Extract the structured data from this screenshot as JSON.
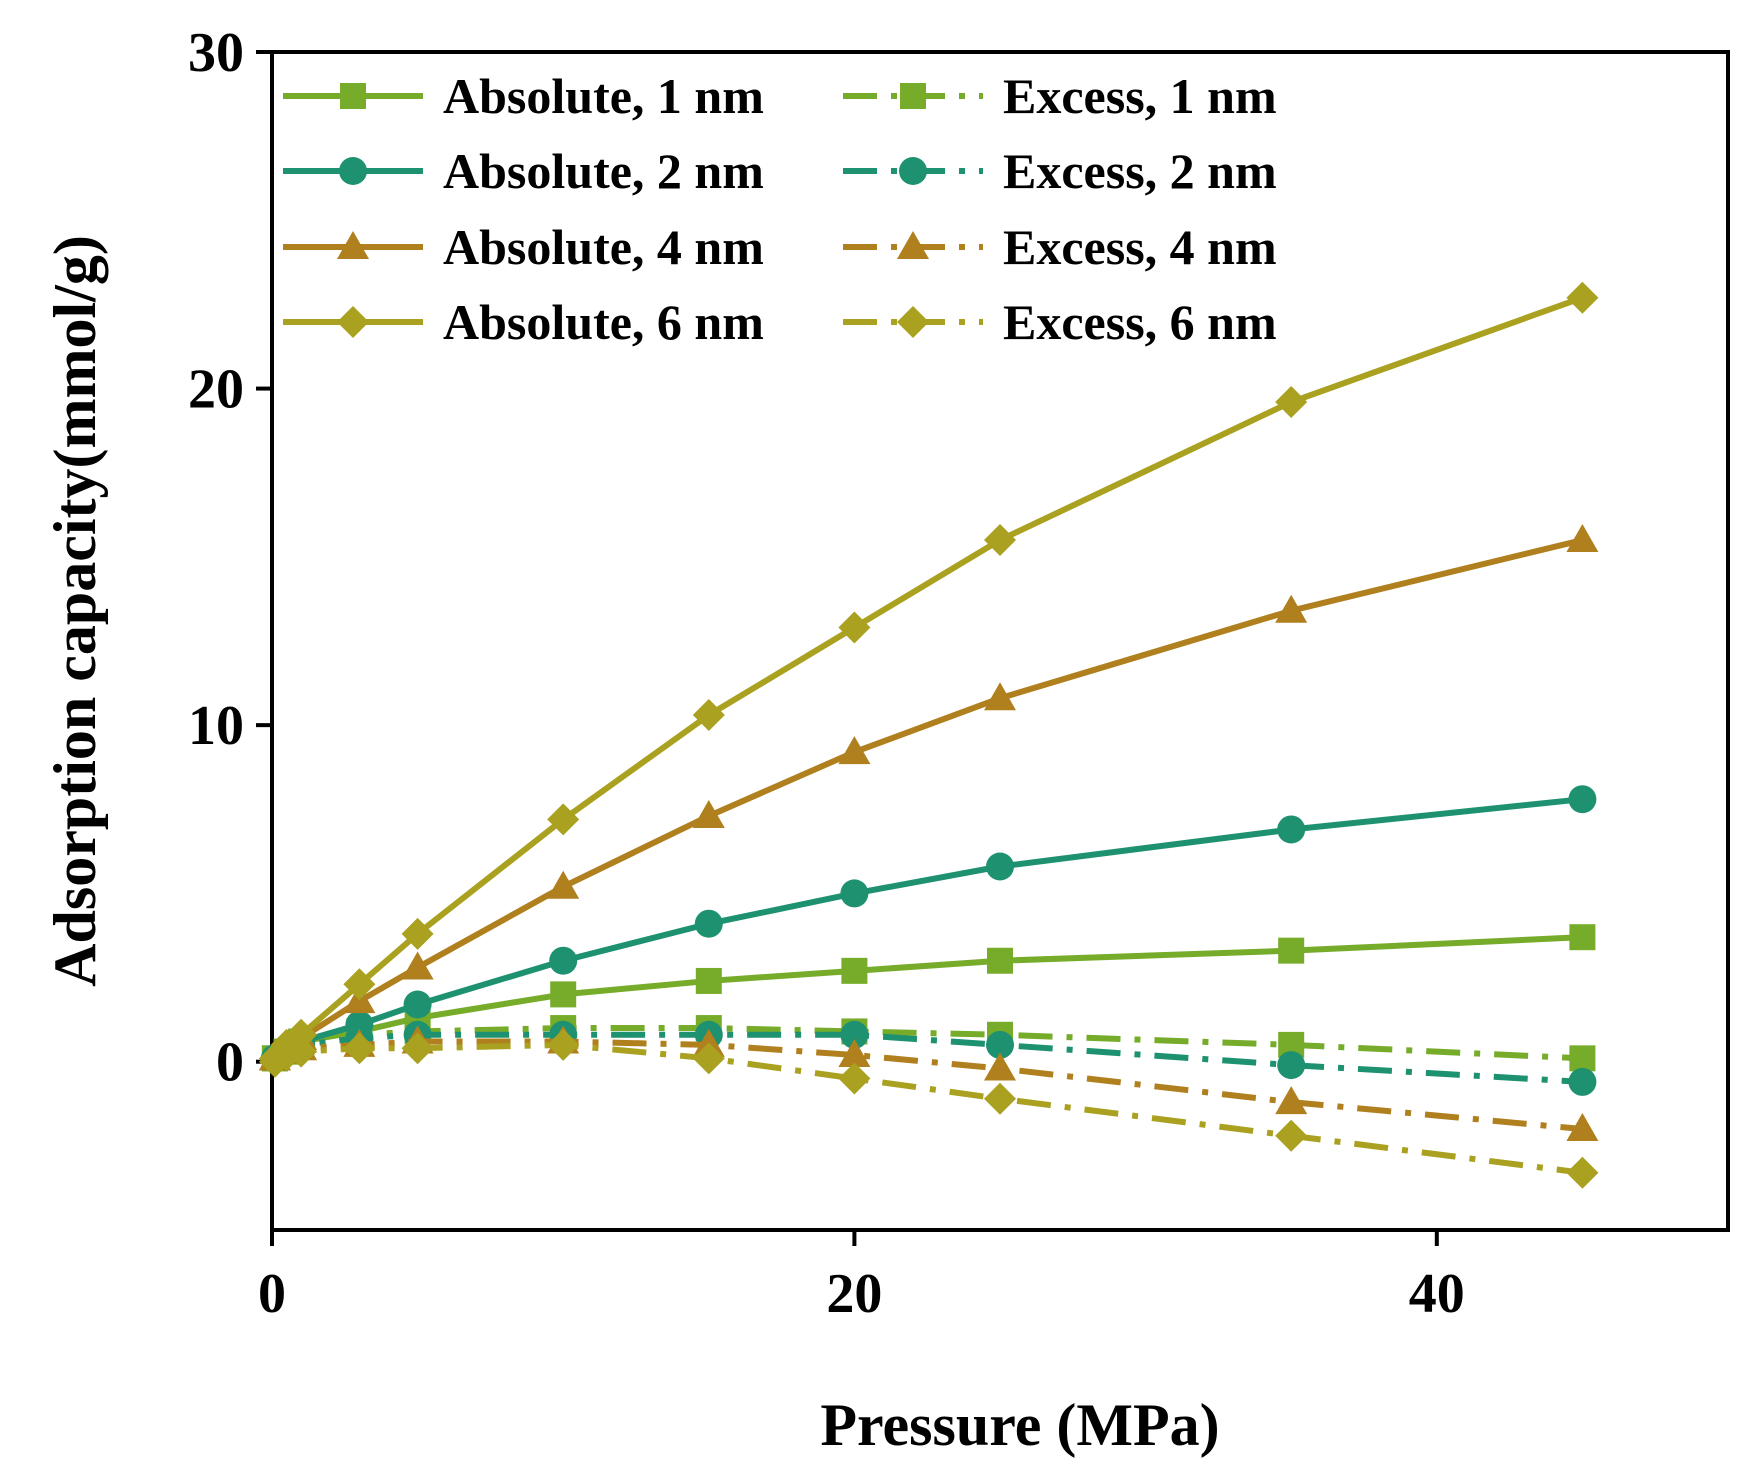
{
  "chart_data": {
    "type": "line",
    "title": "",
    "xlabel": "Pressure (MPa)",
    "ylabel": "Adsorption capacity(mmol/g)",
    "xlim": [
      0,
      50
    ],
    "ylim": [
      -5,
      30
    ],
    "xticks": [
      0,
      20,
      40
    ],
    "yticks": [
      0,
      10,
      20,
      30
    ],
    "x": [
      0.1,
      0.5,
      1,
      3,
      5,
      10,
      15,
      20,
      25,
      35,
      45
    ],
    "legend_position": "top-left",
    "grid": false,
    "series": [
      {
        "name": "Absolute, 1 nm",
        "group": "Absolute",
        "marker": "square",
        "color": "#76ac2a",
        "values": [
          0.1,
          0.3,
          0.6,
          0.9,
          1.3,
          2.0,
          2.4,
          2.7,
          3.0,
          3.3,
          3.7
        ]
      },
      {
        "name": "Excess, 1 nm",
        "group": "Excess",
        "marker": "square",
        "color": "#76ac2a",
        "values": [
          0.1,
          0.3,
          0.5,
          0.8,
          0.9,
          1.0,
          1.0,
          0.9,
          0.8,
          0.5,
          0.1
        ]
      },
      {
        "name": "Absolute, 2 nm",
        "group": "Absolute",
        "marker": "circle",
        "color": "#1e9270",
        "values": [
          0.1,
          0.3,
          0.6,
          1.1,
          1.7,
          3.0,
          4.1,
          5.0,
          5.8,
          6.9,
          7.8
        ]
      },
      {
        "name": "Excess, 2 nm",
        "group": "Excess",
        "marker": "circle",
        "color": "#1e9270",
        "values": [
          0.1,
          0.3,
          0.5,
          0.7,
          0.8,
          0.8,
          0.8,
          0.8,
          0.5,
          -0.1,
          -0.6
        ]
      },
      {
        "name": "Absolute, 4 nm",
        "group": "Absolute",
        "marker": "triangle",
        "color": "#b07f1e",
        "values": [
          0.1,
          0.4,
          0.7,
          1.8,
          2.8,
          5.2,
          7.3,
          9.2,
          10.8,
          13.4,
          15.5
        ]
      },
      {
        "name": "Excess, 4 nm",
        "group": "Excess",
        "marker": "triangle",
        "color": "#b07f1e",
        "values": [
          0.1,
          0.3,
          0.4,
          0.5,
          0.6,
          0.6,
          0.5,
          0.2,
          -0.2,
          -1.2,
          -2.0
        ]
      },
      {
        "name": "Absolute, 6 nm",
        "group": "Absolute",
        "marker": "diamond",
        "color": "#a9a11f",
        "values": [
          0.1,
          0.5,
          0.8,
          2.3,
          3.8,
          7.2,
          10.3,
          12.9,
          15.5,
          19.6,
          22.7
        ]
      },
      {
        "name": "Excess, 6 nm",
        "group": "Excess",
        "marker": "diamond",
        "color": "#a9a11f",
        "values": [
          0.0,
          0.2,
          0.3,
          0.4,
          0.4,
          0.5,
          0.1,
          -0.5,
          -1.1,
          -2.2,
          -3.3
        ]
      }
    ]
  }
}
